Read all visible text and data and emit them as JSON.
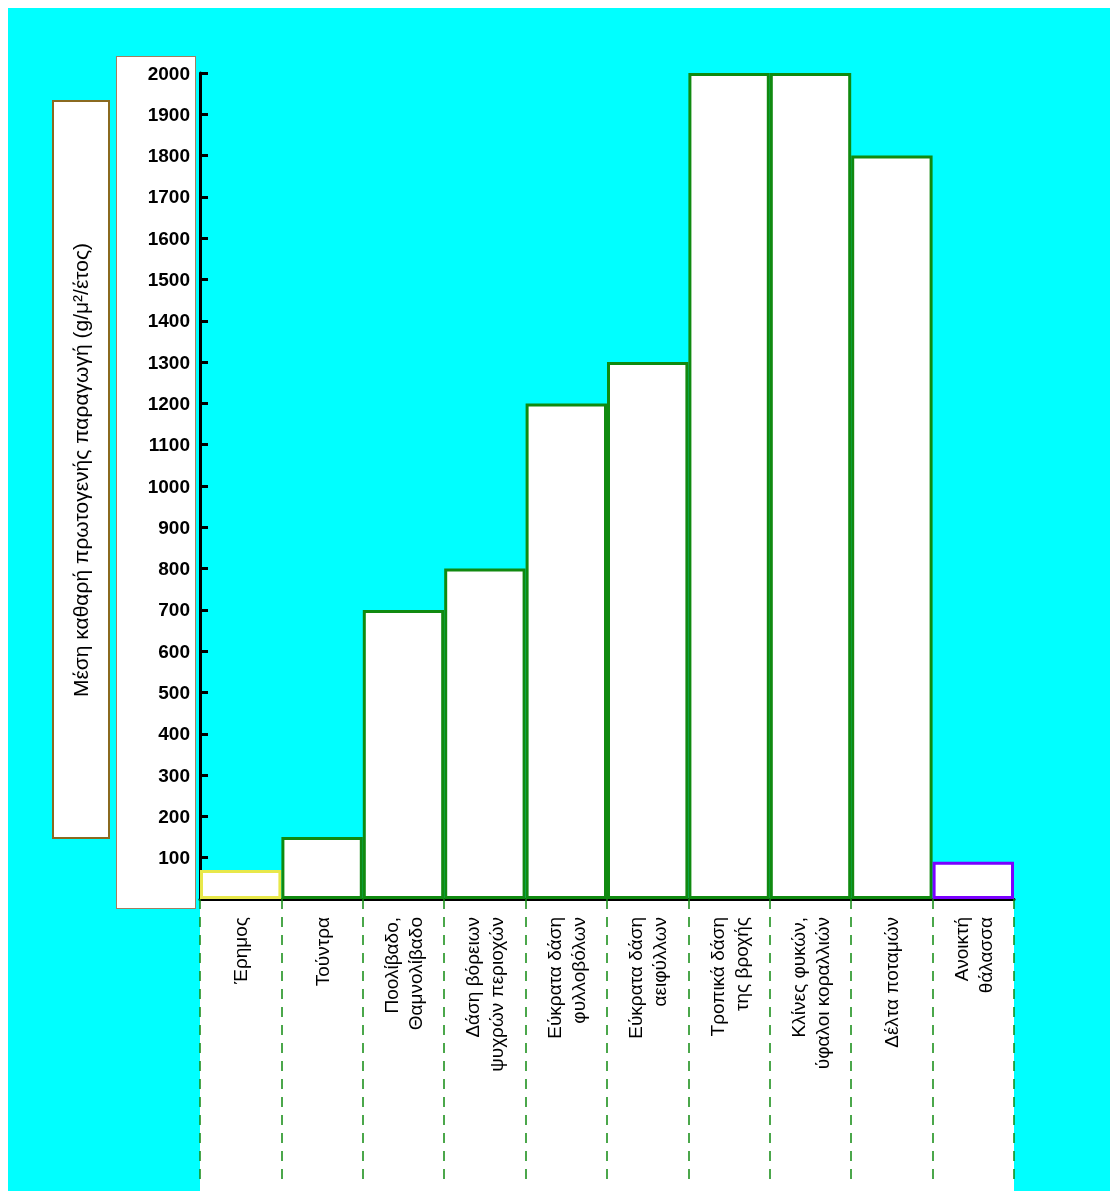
{
  "chart_data": {
    "type": "bar",
    "ylabel": "Μέση καθαρή πρωτογενής παραγωγή (g/μ²/έτος)",
    "categories": [
      "Έρημος",
      "Τούντρα",
      "Ποολίβαδο,\nΘαμνολίβαδο",
      "Δάση βόρειων\nψυχρών περιοχών",
      "Εύκρατα δάση\nφυλλοβόλων",
      "Εύκρατα δάση\nαειφύλλων",
      "Τροπικά δάση\nτης βροχής",
      "Κλίνες φυκών,\nύφαλοι κοραλλιών",
      "Δέλτα ποταμών",
      "Ανοικτή\nθάλασσα"
    ],
    "values": [
      70,
      150,
      700,
      800,
      1200,
      1300,
      2000,
      2000,
      1800,
      90
    ],
    "colors": [
      "#e8e84a",
      "#108a10",
      "#108a10",
      "#108a10",
      "#108a10",
      "#108a10",
      "#108a10",
      "#108a10",
      "#108a10",
      "#7a00ff"
    ],
    "ylim": [
      0,
      2000
    ],
    "yticks": [
      100,
      200,
      300,
      400,
      500,
      600,
      700,
      800,
      900,
      1000,
      1100,
      1200,
      1300,
      1400,
      1500,
      1600,
      1700,
      1800,
      1900,
      2000
    ],
    "grid": false
  }
}
